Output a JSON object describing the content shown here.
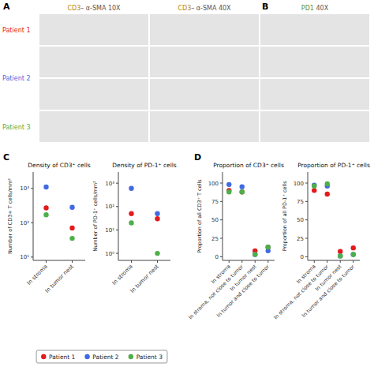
{
  "chart_data": [
    {
      "type": "scatter",
      "title": "Density of CD3⁺ cells",
      "ylabel": "Number of CD3+ T cells/mm²",
      "categories": [
        "In stroma",
        "In tumor nest"
      ],
      "log": "y",
      "ylim": [
        8,
        3000
      ],
      "yticks": [
        {
          "value": 10,
          "label": "10¹"
        },
        {
          "value": 100,
          "label": "10²"
        },
        {
          "value": 1000,
          "label": "10³"
        }
      ],
      "grid": false,
      "legend": "bottom",
      "series": [
        {
          "name": "Patient 1",
          "color": "#e41a1c",
          "values": [
            270,
            70
          ]
        },
        {
          "name": "Patient 2",
          "color": "#4169e1",
          "values": [
            1100,
            280
          ]
        },
        {
          "name": "Patient 3",
          "color": "#4daf4a",
          "values": [
            170,
            35
          ]
        }
      ],
      "annotations": [
        {
          "text": "A"
        },
        {
          "text": "B"
        },
        {
          "text": "C"
        },
        {
          "text": "D"
        },
        {
          "text": "CD3",
          "color": "#b8860b"
        },
        {
          "text": "– α-SMA 10X",
          "color": "#555555"
        },
        {
          "text": "CD3",
          "color": "#b8860b"
        },
        {
          "text": "– α-SMA 40X",
          "color": "#555555"
        },
        {
          "text": "PD1",
          "color": "#6b8e23"
        },
        {
          "text": " 40X",
          "color": "#555555"
        },
        {
          "text": "Patient 1",
          "color": "#e41a1c"
        },
        {
          "text": "Patient 2",
          "color": "#4169e1"
        },
        {
          "text": "Patient 3",
          "color": "#4daf4a"
        }
      ]
    },
    {
      "type": "scatter",
      "title": "Density of PD-1⁺ cells",
      "ylabel": "Number of PD-1⁺ cells/mm²",
      "categories": [
        "In stroma",
        "In tumor nest"
      ],
      "log": "y",
      "ylim": [
        0.5,
        3000
      ],
      "yticks": [
        {
          "value": 1,
          "label": "10⁰"
        },
        {
          "value": 10,
          "label": "10¹"
        },
        {
          "value": 100,
          "label": "10²"
        },
        {
          "value": 1000,
          "label": "10³"
        }
      ],
      "grid": false,
      "series": [
        {
          "color": "#e41a1c",
          "values": [
            50,
            30
          ]
        },
        {
          "color": "#4169e1",
          "values": [
            600,
            50
          ]
        },
        {
          "color": "#4daf4a",
          "values": [
            20,
            1
          ]
        }
      ]
    },
    {
      "type": "scatter",
      "title": "Proportion of CD3⁺ cells",
      "ylabel": "Proportion of all CD3⁺ T cells",
      "categories": [
        "In stroma",
        "In stroma, not close to tumor",
        "In tumor nest",
        "In tumor and close to tumor"
      ],
      "ylim": [
        -5,
        115
      ],
      "yticks": [
        0,
        25,
        50,
        75,
        100
      ],
      "grid": false,
      "series": [
        {
          "color": "#e41a1c",
          "values": [
            90,
            88,
            8,
            13
          ]
        },
        {
          "color": "#4169e1",
          "values": [
            98,
            95,
            3,
            8
          ]
        },
        {
          "color": "#4daf4a",
          "values": [
            88,
            88,
            3,
            13
          ]
        }
      ]
    },
    {
      "type": "scatter",
      "title": "Proportion of PD-1⁺ cells",
      "ylabel": "Proportion of all PD-1⁺ cells",
      "categories": [
        "In stroma",
        "In stroma, not close to tumor",
        "In tumor nest",
        "In tumor and close to tumor"
      ],
      "ylim": [
        -5,
        115
      ],
      "yticks": [
        0,
        25,
        50,
        75,
        100
      ],
      "grid": false,
      "series": [
        {
          "color": "#e41a1c",
          "values": [
            90,
            85,
            7,
            12
          ]
        },
        {
          "color": "#4169e1",
          "values": [
            97,
            96,
            1,
            3
          ]
        },
        {
          "color": "#4daf4a",
          "values": [
            96,
            99,
            1,
            3
          ]
        }
      ]
    }
  ]
}
